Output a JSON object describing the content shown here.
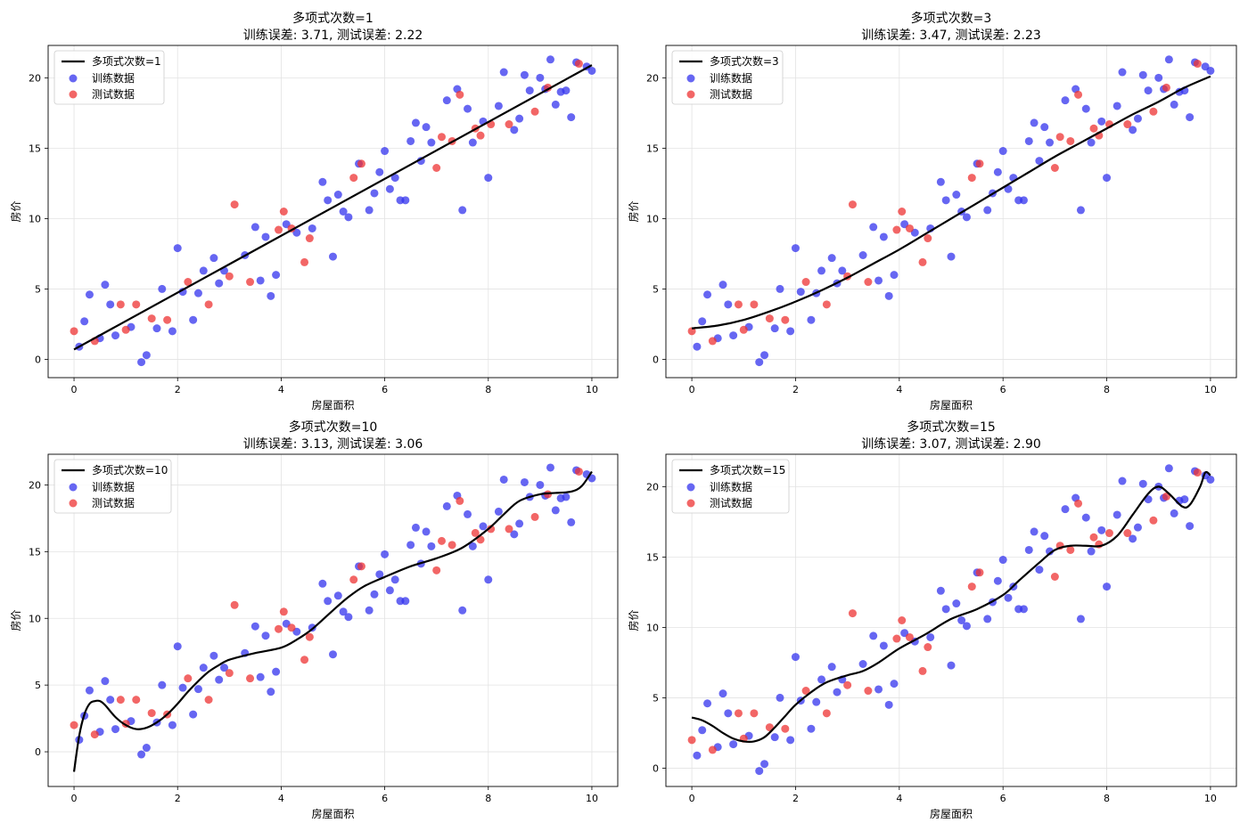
{
  "chart_data": [
    {
      "type": "scatter",
      "title": "多项式次数=1",
      "subtitle": "训练误差: 3.71, 测试误差: 2.22",
      "xlabel": "房屋面积",
      "ylabel": "房价",
      "xlim": [
        -0.5,
        10.5
      ],
      "ylim": [
        -1.3,
        22.3
      ],
      "xticks": [
        0,
        2,
        4,
        6,
        8,
        10
      ],
      "yticks": [
        0,
        5,
        10,
        15,
        20
      ],
      "grid": true,
      "legend": {
        "position": "top-left",
        "fit_label": "多项式次数=1",
        "train_label": "训练数据",
        "test_label": "测试数据"
      },
      "colors": {
        "fit": "#000000",
        "train": "#3333ee",
        "test": "#ee3333"
      },
      "fit_curve": [
        [
          0.0,
          0.7
        ],
        [
          10.0,
          20.9
        ]
      ]
    },
    {
      "type": "scatter",
      "title": "多项式次数=3",
      "subtitle": "训练误差: 3.47, 测试误差: 2.23",
      "xlabel": "房屋面积",
      "ylabel": "房价",
      "xlim": [
        -0.5,
        10.5
      ],
      "ylim": [
        -1.3,
        22.3
      ],
      "xticks": [
        0,
        2,
        4,
        6,
        8,
        10
      ],
      "yticks": [
        0,
        5,
        10,
        15,
        20
      ],
      "grid": true,
      "legend": {
        "position": "top-left",
        "fit_label": "多项式次数=3",
        "train_label": "训练数据",
        "test_label": "测试数据"
      },
      "colors": {
        "fit": "#000000",
        "train": "#3333ee",
        "test": "#ee3333"
      },
      "fit_curve": [
        [
          0,
          2.2
        ],
        [
          0.5,
          2.4
        ],
        [
          1,
          2.8
        ],
        [
          1.5,
          3.4
        ],
        [
          2,
          4.1
        ],
        [
          2.5,
          4.9
        ],
        [
          3,
          5.8
        ],
        [
          3.5,
          6.8
        ],
        [
          4,
          7.8
        ],
        [
          4.5,
          8.9
        ],
        [
          5,
          10.0
        ],
        [
          5.5,
          11.1
        ],
        [
          6,
          12.2
        ],
        [
          6.5,
          13.3
        ],
        [
          7,
          14.4
        ],
        [
          7.5,
          15.4
        ],
        [
          8,
          16.4
        ],
        [
          8.5,
          17.4
        ],
        [
          9,
          18.3
        ],
        [
          9.5,
          19.3
        ],
        [
          10,
          20.1
        ]
      ]
    },
    {
      "type": "scatter",
      "title": "多项式次数=10",
      "subtitle": "训练误差: 3.13, 测试误差: 3.06",
      "xlabel": "房屋面积",
      "ylabel": "房价",
      "xlim": [
        -0.5,
        10.5
      ],
      "ylim": [
        -2.6,
        22.3
      ],
      "xticks": [
        0,
        2,
        4,
        6,
        8,
        10
      ],
      "yticks": [
        0,
        5,
        10,
        15,
        20
      ],
      "grid": true,
      "legend": {
        "position": "top-left",
        "fit_label": "多项式次数=10",
        "train_label": "训练数据",
        "test_label": "测试数据"
      },
      "colors": {
        "fit": "#000000",
        "train": "#3333ee",
        "test": "#ee3333"
      },
      "fit_curve": [
        [
          0,
          -1.5
        ],
        [
          0.1,
          1.2
        ],
        [
          0.2,
          2.8
        ],
        [
          0.3,
          3.6
        ],
        [
          0.4,
          3.8
        ],
        [
          0.5,
          3.8
        ],
        [
          0.6,
          3.5
        ],
        [
          0.8,
          2.6
        ],
        [
          1.0,
          2.0
        ],
        [
          1.2,
          1.7
        ],
        [
          1.4,
          1.8
        ],
        [
          1.6,
          2.2
        ],
        [
          1.8,
          2.8
        ],
        [
          2.0,
          3.6
        ],
        [
          2.2,
          4.5
        ],
        [
          2.4,
          5.3
        ],
        [
          2.6,
          6.0
        ],
        [
          2.8,
          6.5
        ],
        [
          3.0,
          6.9
        ],
        [
          3.5,
          7.4
        ],
        [
          4.0,
          7.8
        ],
        [
          4.3,
          8.4
        ],
        [
          4.6,
          9.2
        ],
        [
          5.0,
          10.6
        ],
        [
          5.3,
          11.6
        ],
        [
          5.6,
          12.4
        ],
        [
          6.0,
          13.1
        ],
        [
          6.5,
          13.9
        ],
        [
          7.0,
          14.5
        ],
        [
          7.5,
          15.3
        ],
        [
          8.0,
          16.7
        ],
        [
          8.3,
          17.8
        ],
        [
          8.6,
          18.8
        ],
        [
          9.0,
          19.3
        ],
        [
          9.3,
          19.4
        ],
        [
          9.6,
          19.5
        ],
        [
          9.8,
          19.9
        ],
        [
          10.0,
          21.0
        ]
      ]
    },
    {
      "type": "scatter",
      "title": "多项式次数=15",
      "subtitle": "训练误差: 3.07, 测试误差: 2.90",
      "xlabel": "房屋面积",
      "ylabel": "房价",
      "xlim": [
        -0.5,
        10.5
      ],
      "ylim": [
        -1.3,
        22.3
      ],
      "xticks": [
        0,
        2,
        4,
        6,
        8,
        10
      ],
      "yticks": [
        0,
        5,
        10,
        15,
        20
      ],
      "grid": true,
      "legend": {
        "position": "top-left",
        "fit_label": "多项式次数=15",
        "train_label": "训练数据",
        "test_label": "测试数据"
      },
      "colors": {
        "fit": "#000000",
        "train": "#3333ee",
        "test": "#ee3333"
      },
      "fit_curve": [
        [
          0,
          3.6
        ],
        [
          0.2,
          3.4
        ],
        [
          0.4,
          3.0
        ],
        [
          0.6,
          2.5
        ],
        [
          0.8,
          2.1
        ],
        [
          1.0,
          1.9
        ],
        [
          1.2,
          1.9
        ],
        [
          1.4,
          2.2
        ],
        [
          1.6,
          2.9
        ],
        [
          1.8,
          3.7
        ],
        [
          2.0,
          4.5
        ],
        [
          2.3,
          5.4
        ],
        [
          2.6,
          6.1
        ],
        [
          3.0,
          6.6
        ],
        [
          3.3,
          6.9
        ],
        [
          3.6,
          7.5
        ],
        [
          4.0,
          8.5
        ],
        [
          4.5,
          9.5
        ],
        [
          5.0,
          10.6
        ],
        [
          5.5,
          11.3
        ],
        [
          6.0,
          12.3
        ],
        [
          6.3,
          13.3
        ],
        [
          6.7,
          14.6
        ],
        [
          7.0,
          15.5
        ],
        [
          7.3,
          15.8
        ],
        [
          7.6,
          15.8
        ],
        [
          7.9,
          15.8
        ],
        [
          8.2,
          16.5
        ],
        [
          8.5,
          18.0
        ],
        [
          8.8,
          19.5
        ],
        [
          9.0,
          20.0
        ],
        [
          9.2,
          19.5
        ],
        [
          9.45,
          18.6
        ],
        [
          9.6,
          18.7
        ],
        [
          9.8,
          20.0
        ],
        [
          9.9,
          21.0
        ],
        [
          10.0,
          20.8
        ]
      ]
    }
  ],
  "train_data": [
    [
      0.1,
      0.9
    ],
    [
      0.2,
      2.7
    ],
    [
      0.3,
      4.6
    ],
    [
      0.5,
      1.5
    ],
    [
      0.6,
      5.3
    ],
    [
      0.7,
      3.9
    ],
    [
      0.8,
      1.7
    ],
    [
      1.1,
      2.3
    ],
    [
      1.3,
      -0.2
    ],
    [
      1.4,
      0.3
    ],
    [
      1.6,
      2.2
    ],
    [
      1.7,
      5.0
    ],
    [
      1.9,
      2.0
    ],
    [
      2.0,
      7.9
    ],
    [
      2.1,
      4.8
    ],
    [
      2.3,
      2.8
    ],
    [
      2.4,
      4.7
    ],
    [
      2.5,
      6.3
    ],
    [
      2.7,
      7.2
    ],
    [
      2.8,
      5.4
    ],
    [
      2.9,
      6.3
    ],
    [
      3.3,
      7.4
    ],
    [
      3.5,
      9.4
    ],
    [
      3.6,
      5.6
    ],
    [
      3.7,
      8.7
    ],
    [
      3.8,
      4.5
    ],
    [
      3.9,
      6.0
    ],
    [
      4.1,
      9.6
    ],
    [
      4.3,
      9.0
    ],
    [
      4.6,
      9.3
    ],
    [
      4.8,
      12.6
    ],
    [
      4.9,
      11.3
    ],
    [
      5.0,
      7.3
    ],
    [
      5.1,
      11.7
    ],
    [
      5.2,
      10.5
    ],
    [
      5.3,
      10.1
    ],
    [
      5.5,
      13.9
    ],
    [
      5.7,
      10.6
    ],
    [
      5.8,
      11.8
    ],
    [
      5.9,
      13.3
    ],
    [
      6.0,
      14.8
    ],
    [
      6.1,
      12.1
    ],
    [
      6.2,
      12.9
    ],
    [
      6.3,
      11.3
    ],
    [
      6.4,
      11.3
    ],
    [
      6.5,
      15.5
    ],
    [
      6.6,
      16.8
    ],
    [
      6.7,
      14.1
    ],
    [
      6.8,
      16.5
    ],
    [
      6.9,
      15.4
    ],
    [
      7.2,
      18.4
    ],
    [
      7.4,
      19.2
    ],
    [
      7.5,
      10.6
    ],
    [
      7.6,
      17.8
    ],
    [
      7.7,
      15.4
    ],
    [
      7.9,
      16.9
    ],
    [
      8.0,
      12.9
    ],
    [
      8.2,
      18.0
    ],
    [
      8.3,
      20.4
    ],
    [
      8.5,
      16.3
    ],
    [
      8.6,
      17.1
    ],
    [
      8.7,
      20.2
    ],
    [
      8.8,
      19.1
    ],
    [
      9.0,
      20.0
    ],
    [
      9.1,
      19.2
    ],
    [
      9.2,
      21.3
    ],
    [
      9.3,
      18.1
    ],
    [
      9.4,
      19.0
    ],
    [
      9.5,
      19.1
    ],
    [
      9.6,
      17.2
    ],
    [
      9.7,
      21.1
    ],
    [
      9.9,
      20.8
    ],
    [
      10.0,
      20.5
    ]
  ],
  "test_data": [
    [
      0.0,
      2.0
    ],
    [
      0.4,
      1.3
    ],
    [
      0.9,
      3.9
    ],
    [
      1.0,
      2.1
    ],
    [
      1.2,
      3.9
    ],
    [
      1.5,
      2.9
    ],
    [
      1.8,
      2.8
    ],
    [
      2.2,
      5.5
    ],
    [
      2.6,
      3.9
    ],
    [
      3.0,
      5.9
    ],
    [
      3.1,
      11.0
    ],
    [
      3.4,
      5.5
    ],
    [
      3.95,
      9.2
    ],
    [
      4.05,
      10.5
    ],
    [
      4.2,
      9.3
    ],
    [
      4.45,
      6.9
    ],
    [
      4.55,
      8.6
    ],
    [
      5.4,
      12.9
    ],
    [
      5.55,
      13.9
    ],
    [
      7.0,
      13.6
    ],
    [
      7.1,
      15.8
    ],
    [
      7.3,
      15.5
    ],
    [
      7.45,
      18.8
    ],
    [
      7.75,
      16.4
    ],
    [
      7.85,
      15.9
    ],
    [
      8.05,
      16.7
    ],
    [
      8.4,
      16.7
    ],
    [
      8.9,
      17.6
    ],
    [
      9.15,
      19.3
    ],
    [
      9.75,
      21.0
    ]
  ]
}
